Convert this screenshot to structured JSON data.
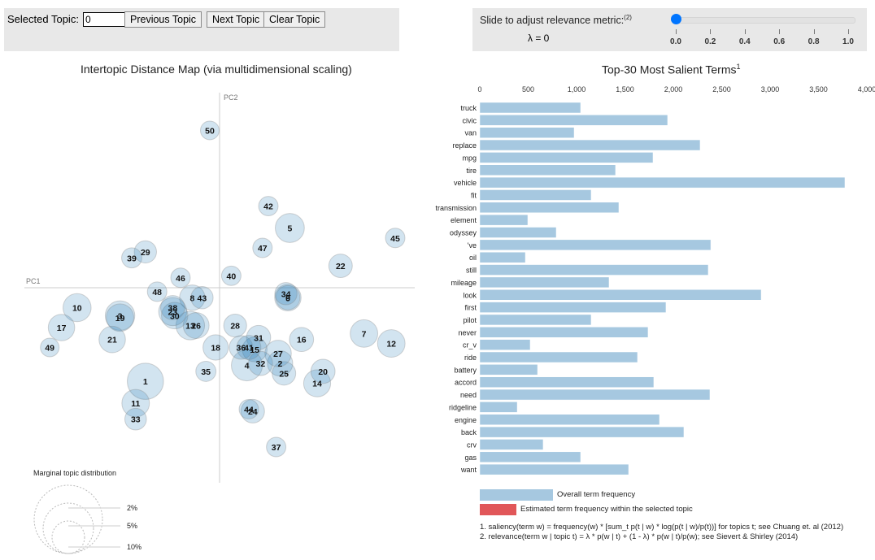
{
  "controls": {
    "selected_topic_label": "Selected Topic:",
    "selected_topic_value": "0",
    "previous_label": "Previous Topic",
    "next_label": "Next Topic",
    "clear_label": "Clear Topic"
  },
  "slider": {
    "label": "Slide to adjust relevance metric:",
    "footnote_ref": "(2)",
    "lambda_text": "λ = 0",
    "value": 0.0,
    "min": 0.0,
    "max": 1.0,
    "tick_labels": [
      "0.0",
      "0.2",
      "0.4",
      "0.6",
      "0.8",
      "1.0"
    ],
    "accent_color": "#0075ff"
  },
  "chart_data": [
    {
      "type": "scatter",
      "title": "Intertopic Distance Map (via multidimensional scaling)",
      "xlabel": "PC1",
      "ylabel": "PC2",
      "note": "Bubble coordinates in normalized PC units (-1..1), size = relative marginal topic distribution (%)",
      "bubble_color": "#1f77b4",
      "points": [
        {
          "topic": "1",
          "x": -0.38,
          "y": -0.47,
          "size": 4.5
        },
        {
          "topic": "2",
          "x": 0.31,
          "y": -0.38,
          "size": 2.2
        },
        {
          "topic": "3",
          "x": -0.51,
          "y": -0.14,
          "size": 3.0
        },
        {
          "topic": "4",
          "x": 0.14,
          "y": -0.39,
          "size": 3.3
        },
        {
          "topic": "5",
          "x": 0.36,
          "y": 0.3,
          "size": 2.9
        },
        {
          "topic": "6",
          "x": 0.35,
          "y": -0.05,
          "size": 2.4
        },
        {
          "topic": "7",
          "x": 0.74,
          "y": -0.23,
          "size": 2.6
        },
        {
          "topic": "8",
          "x": -0.14,
          "y": -0.05,
          "size": 2.2
        },
        {
          "topic": "9",
          "x": 0.35,
          "y": -0.05,
          "size": 2.0
        },
        {
          "topic": "10",
          "x": -0.73,
          "y": -0.1,
          "size": 2.7
        },
        {
          "topic": "11",
          "x": -0.43,
          "y": -0.58,
          "size": 2.6
        },
        {
          "topic": "12",
          "x": 0.88,
          "y": -0.28,
          "size": 2.6
        },
        {
          "topic": "13",
          "x": -0.15,
          "y": -0.19,
          "size": 2.8
        },
        {
          "topic": "14",
          "x": 0.5,
          "y": -0.48,
          "size": 2.5
        },
        {
          "topic": "15",
          "x": 0.18,
          "y": -0.31,
          "size": 2.1
        },
        {
          "topic": "16",
          "x": 0.42,
          "y": -0.26,
          "size": 2.0
        },
        {
          "topic": "17",
          "x": -0.81,
          "y": -0.2,
          "size": 2.4
        },
        {
          "topic": "18",
          "x": -0.02,
          "y": -0.3,
          "size": 2.2
        },
        {
          "topic": "19",
          "x": -0.51,
          "y": -0.15,
          "size": 2.6
        },
        {
          "topic": "20",
          "x": 0.53,
          "y": -0.42,
          "size": 2.0
        },
        {
          "topic": "21",
          "x": -0.55,
          "y": -0.26,
          "size": 2.4
        },
        {
          "topic": "22",
          "x": 0.62,
          "y": 0.11,
          "size": 1.9
        },
        {
          "topic": "23",
          "x": -0.24,
          "y": -0.12,
          "size": 2.7
        },
        {
          "topic": "24",
          "x": 0.17,
          "y": -0.62,
          "size": 1.9
        },
        {
          "topic": "25",
          "x": 0.33,
          "y": -0.43,
          "size": 1.9
        },
        {
          "topic": "26",
          "x": -0.12,
          "y": -0.19,
          "size": 2.3
        },
        {
          "topic": "27",
          "x": 0.3,
          "y": -0.33,
          "size": 2.4
        },
        {
          "topic": "28",
          "x": 0.08,
          "y": -0.19,
          "size": 1.8
        },
        {
          "topic": "29",
          "x": -0.38,
          "y": 0.18,
          "size": 1.7
        },
        {
          "topic": "30",
          "x": -0.23,
          "y": -0.14,
          "size": 2.4
        },
        {
          "topic": "31",
          "x": 0.2,
          "y": -0.25,
          "size": 2.0
        },
        {
          "topic": "32",
          "x": 0.21,
          "y": -0.38,
          "size": 2.0
        },
        {
          "topic": "33",
          "x": -0.43,
          "y": -0.66,
          "size": 1.6
        },
        {
          "topic": "34",
          "x": 0.34,
          "y": -0.03,
          "size": 1.7
        },
        {
          "topic": "35",
          "x": -0.07,
          "y": -0.42,
          "size": 1.4
        },
        {
          "topic": "36",
          "x": 0.11,
          "y": -0.3,
          "size": 1.9
        },
        {
          "topic": "37",
          "x": 0.29,
          "y": -0.8,
          "size": 1.3
        },
        {
          "topic": "38",
          "x": -0.24,
          "y": -0.1,
          "size": 2.0
        },
        {
          "topic": "39",
          "x": -0.45,
          "y": 0.15,
          "size": 1.4
        },
        {
          "topic": "40",
          "x": 0.06,
          "y": 0.06,
          "size": 1.3
        },
        {
          "topic": "41",
          "x": 0.15,
          "y": -0.3,
          "size": 2.0
        },
        {
          "topic": "42",
          "x": 0.25,
          "y": 0.41,
          "size": 1.3
        },
        {
          "topic": "43",
          "x": -0.09,
          "y": -0.05,
          "size": 1.7
        },
        {
          "topic": "44",
          "x": 0.15,
          "y": -0.61,
          "size": 1.3
        },
        {
          "topic": "45",
          "x": 0.9,
          "y": 0.25,
          "size": 1.3
        },
        {
          "topic": "46",
          "x": -0.2,
          "y": 0.05,
          "size": 1.3
        },
        {
          "topic": "47",
          "x": 0.22,
          "y": 0.2,
          "size": 1.3
        },
        {
          "topic": "48",
          "x": -0.32,
          "y": -0.02,
          "size": 1.3
        },
        {
          "topic": "49",
          "x": -0.87,
          "y": -0.3,
          "size": 1.2
        },
        {
          "topic": "50",
          "x": -0.05,
          "y": 0.79,
          "size": 1.2
        }
      ],
      "size_legend": {
        "title": "Marginal topic distribution",
        "labels": [
          "2%",
          "5%",
          "10%"
        ]
      }
    },
    {
      "type": "bar",
      "orientation": "horizontal",
      "title": "Top-30 Most Salient Terms",
      "title_footnote": "1",
      "xlim": [
        0,
        4000
      ],
      "x_tick_labels": [
        "0",
        "500",
        "1,000",
        "1,500",
        "2,000",
        "2,500",
        "3,000",
        "3,500",
        "4,000"
      ],
      "x_ticks": [
        0,
        500,
        1000,
        1500,
        2000,
        2500,
        3000,
        3500,
        4000
      ],
      "categories": [
        "truck",
        "civic",
        "van",
        "replace",
        "mpg",
        "tire",
        "vehicle",
        "fit",
        "transmission",
        "element",
        "odyssey",
        "'ve",
        "oil",
        "still",
        "mileage",
        "look",
        "first",
        "pilot",
        "never",
        "cr_v",
        "ride",
        "battery",
        "accord",
        "need",
        "ridgeline",
        "engine",
        "back",
        "crv",
        "gas",
        "want"
      ],
      "series": [
        {
          "name": "Overall term frequency",
          "color": "#a6c8e0",
          "values": [
            1042,
            1941,
            975,
            2277,
            1790,
            1403,
            3773,
            1151,
            1437,
            496,
            790,
            2387,
            471,
            2361,
            1336,
            2908,
            1924,
            1151,
            1739,
            521,
            1630,
            597,
            1798,
            2378,
            387,
            1857,
            2109,
            655,
            1042,
            1538
          ]
        },
        {
          "name": "Estimated term frequency within the selected topic",
          "color": "#e15759",
          "values": []
        }
      ]
    }
  ],
  "footnotes": [
    "1. saliency(term w) = frequency(w) * [sum_t p(t | w) * log(p(t | w)/p(t))] for topics t; see Chuang et. al (2012)",
    "2. relevance(term w | topic t) = λ * p(w | t) + (1 - λ) * p(w | t)/p(w); see Sievert & Shirley (2014)"
  ]
}
